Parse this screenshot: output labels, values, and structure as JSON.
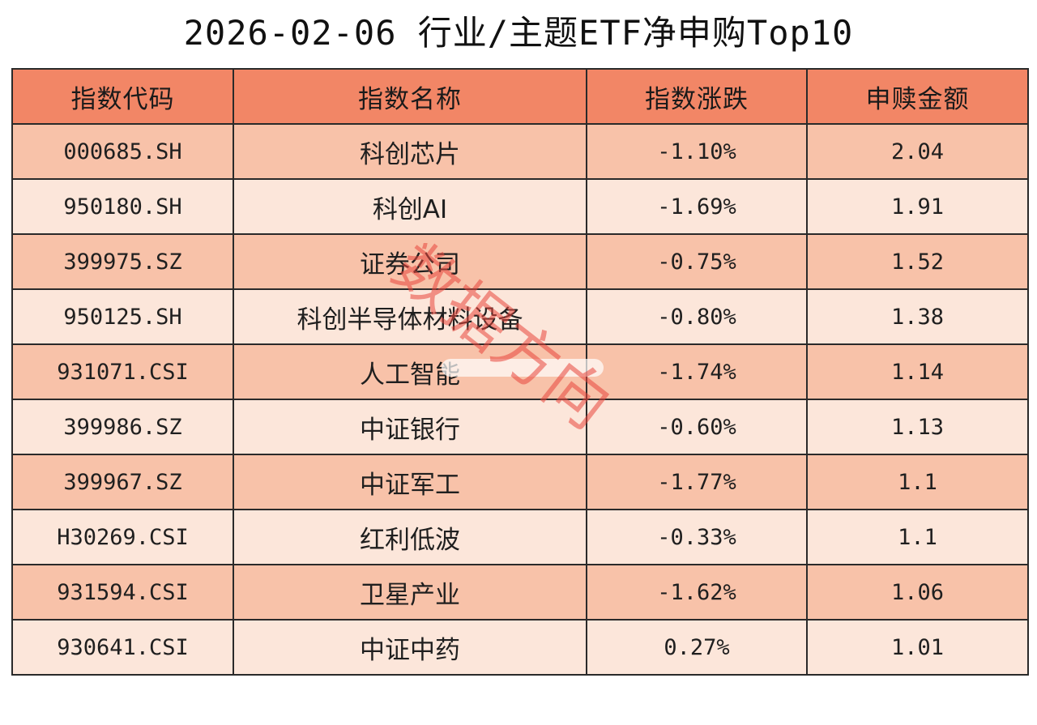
{
  "title": "2026-02-06 行业/主题ETF净申购Top10",
  "table": {
    "headers": [
      "指数代码",
      "指数名称",
      "指数涨跌",
      "申赎金额"
    ],
    "rows": [
      {
        "code": "000685.SH",
        "name": "科创芯片",
        "change": "-1.10%",
        "amount": "2.04"
      },
      {
        "code": "950180.SH",
        "name": "科创AI",
        "change": "-1.69%",
        "amount": "1.91"
      },
      {
        "code": "399975.SZ",
        "name": "证券公司",
        "change": "-0.75%",
        "amount": "1.52"
      },
      {
        "code": "950125.SH",
        "name": "科创半导体材料设备",
        "change": "-0.80%",
        "amount": "1.38"
      },
      {
        "code": "931071.CSI",
        "name": "人工智能",
        "change": "-1.74%",
        "amount": "1.14"
      },
      {
        "code": "399986.SZ",
        "name": "中证银行",
        "change": "-0.60%",
        "amount": "1.13"
      },
      {
        "code": "399967.SZ",
        "name": "中证军工",
        "change": "-1.77%",
        "amount": "1.1"
      },
      {
        "code": "H30269.CSI",
        "name": "红利低波",
        "change": "-0.33%",
        "amount": "1.1"
      },
      {
        "code": "931594.CSI",
        "name": "卫星产业",
        "change": "-1.62%",
        "amount": "1.06"
      },
      {
        "code": "930641.CSI",
        "name": "中证中药",
        "change": "0.27%",
        "amount": "1.01"
      }
    ]
  },
  "watermark": "数据方向",
  "colors": {
    "header_bg": "#f28666",
    "row_odd_bg": "#f8c2a9",
    "row_even_bg": "#fce6da",
    "watermark": "#e8453c"
  }
}
